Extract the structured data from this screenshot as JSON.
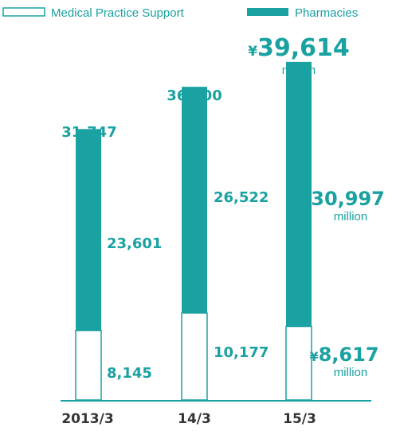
{
  "chart_data": {
    "type": "bar",
    "stacked": true,
    "categories": [
      "2013/3",
      "14/3",
      "15/3"
    ],
    "series": [
      {
        "name": "Medical Practice Support",
        "values": [
          8145,
          10177,
          8617
        ],
        "color": "#ffffff",
        "stroke": "#1aa1a1"
      },
      {
        "name": "Pharmacies",
        "values": [
          23601,
          26522,
          30997
        ],
        "color": "#1aa1a1"
      }
    ],
    "totals": [
      31747,
      36700,
      39614
    ],
    "total_labels": [
      "31,747",
      "36,700",
      "39,614"
    ],
    "segment_labels": {
      "medical": [
        "8,145",
        "10,177",
        "8,617"
      ],
      "pharmacies": [
        "23,601",
        "26,522",
        "30,997"
      ]
    },
    "currency_symbol": "¥",
    "unit_label": "million",
    "legend_position": "top",
    "ylim": [
      0,
      41000
    ],
    "grid": false,
    "accent_color": "#1aa1a1"
  }
}
